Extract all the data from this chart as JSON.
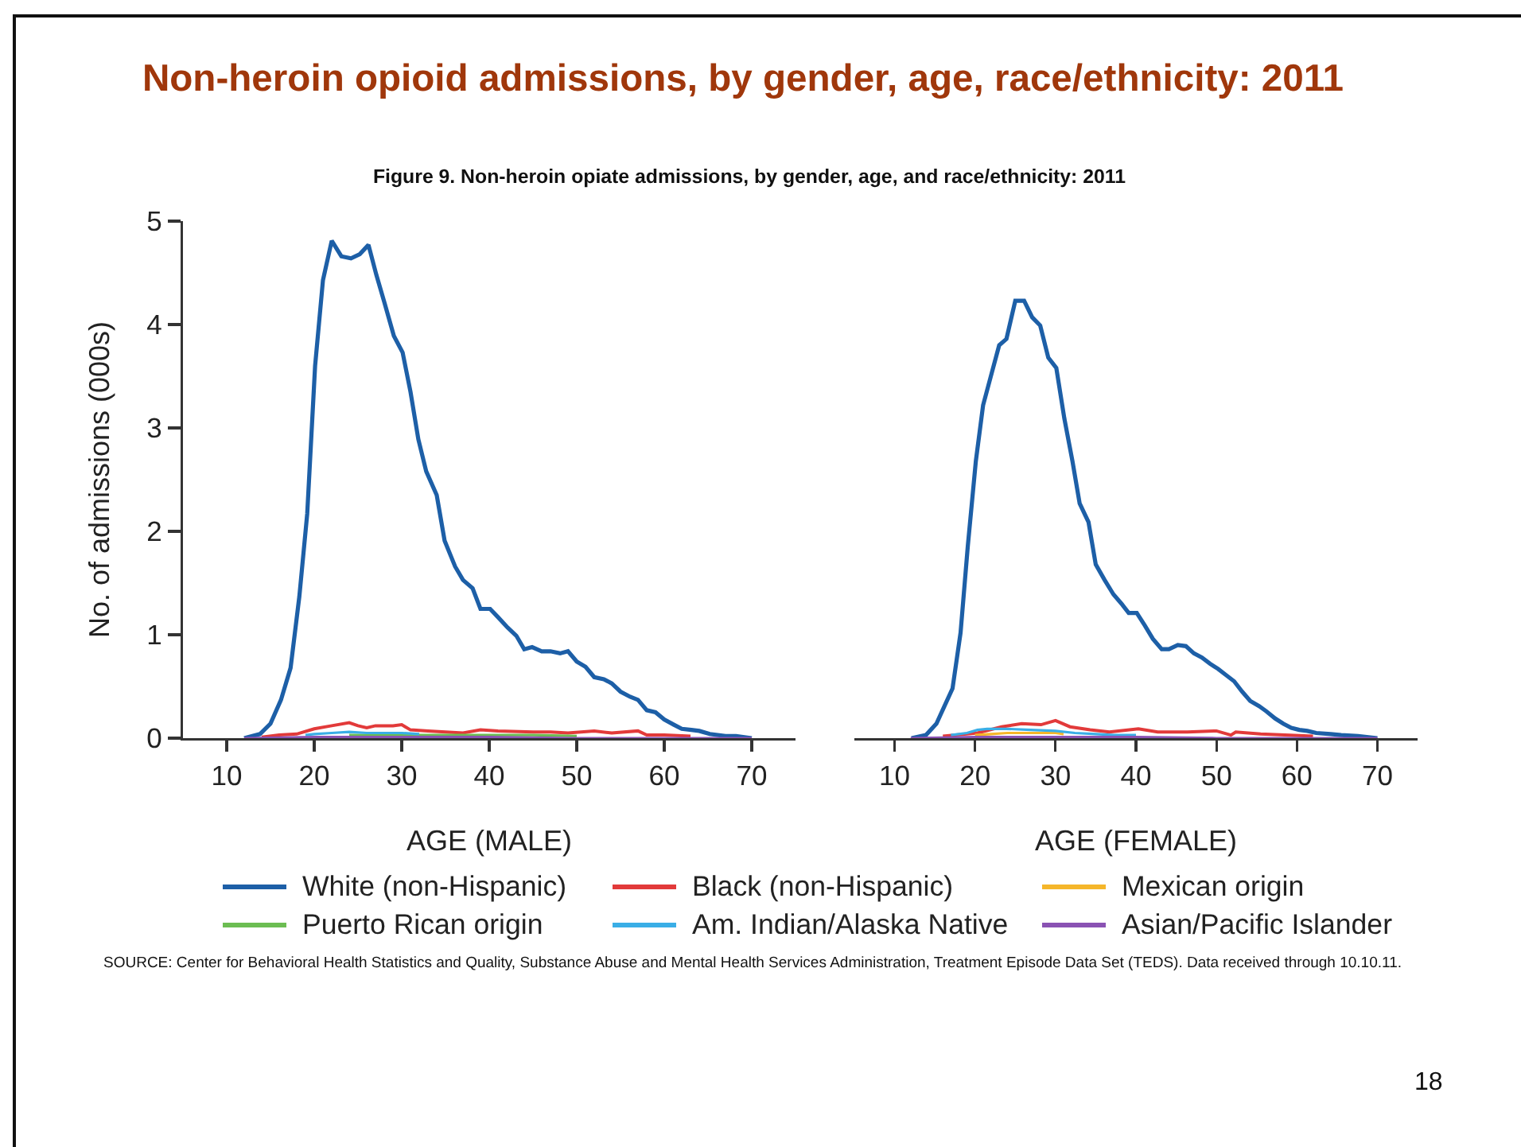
{
  "chart_data": [
    {
      "type": "line",
      "title": "Non-heroin opioid admissions, by gender, age, race/ethnicity: 2011",
      "subtitle": "Figure 9. Non-heroin opiate admissions, by gender, age, and race/ethnicity: 2011",
      "xlabel": "AGE (MALE)",
      "ylabel": "No. of admissions (000s)",
      "xlim": [
        5,
        75
      ],
      "xticks": [
        10,
        20,
        30,
        40,
        50,
        60,
        70
      ],
      "ylim": [
        0,
        5
      ],
      "yticks": [
        0,
        1,
        2,
        3,
        4,
        5
      ],
      "legend": "bottom",
      "annotations": [
        "SOURCE: Center for Behavioral Health Statistics and Quality, Substance Abuse and Mental Health Services Administration, Treatment Episode Data Set (TEDS). Data received through 10.10.11.",
        "18"
      ],
      "series": [
        {
          "name": "White (non-Hispanic)",
          "color": "#1d5fa7",
          "x": [
            12,
            13.8,
            15,
            16.2,
            17.3,
            18.3,
            19.2,
            20.1,
            21,
            22,
            23.1,
            24.2,
            25.2,
            26.2,
            27.1,
            28,
            29.1,
            30.1,
            31,
            31.9,
            32.8,
            34,
            34.9,
            36.1,
            37,
            38.1,
            39,
            40.1,
            41,
            42.1,
            43.1,
            44,
            44.9,
            46,
            47,
            48.1,
            49,
            50,
            51,
            52,
            53.1,
            54,
            55,
            56.1,
            57,
            58,
            59,
            60,
            61.1,
            62,
            63.1,
            64,
            65.2,
            67,
            68.2,
            70
          ],
          "values": [
            0,
            0.04,
            0.14,
            0.37,
            0.68,
            1.37,
            2.17,
            3.6,
            4.43,
            4.81,
            4.66,
            4.64,
            4.68,
            4.77,
            4.48,
            4.22,
            3.89,
            3.73,
            3.35,
            2.89,
            2.58,
            2.35,
            1.91,
            1.66,
            1.53,
            1.45,
            1.25,
            1.25,
            1.17,
            1.07,
            0.99,
            0.86,
            0.88,
            0.84,
            0.84,
            0.82,
            0.84,
            0.74,
            0.69,
            0.59,
            0.57,
            0.53,
            0.45,
            0.4,
            0.37,
            0.27,
            0.25,
            0.18,
            0.13,
            0.09,
            0.08,
            0.07,
            0.04,
            0.02,
            0.02,
            0
          ]
        },
        {
          "name": "Black (non-Hispanic)",
          "color": "#e23a3a",
          "x": [
            14,
            16,
            18,
            20,
            22,
            24,
            25,
            26,
            27,
            29,
            30,
            31,
            33,
            35,
            37,
            39,
            41,
            45,
            47,
            49,
            52,
            54,
            57,
            58,
            60,
            63
          ],
          "values": [
            0.01,
            0.03,
            0.04,
            0.09,
            0.12,
            0.15,
            0.12,
            0.1,
            0.12,
            0.12,
            0.13,
            0.08,
            0.07,
            0.06,
            0.05,
            0.08,
            0.07,
            0.06,
            0.06,
            0.05,
            0.07,
            0.05,
            0.07,
            0.03,
            0.03,
            0.02
          ]
        },
        {
          "name": "Mexican origin",
          "color": "#f5b62a"
        },
        {
          "name": "Puerto Rican origin",
          "color": "#6cbd52",
          "x": [
            24,
            28,
            32,
            36,
            40,
            45,
            50
          ],
          "values": [
            0.03,
            0.03,
            0.03,
            0.03,
            0.03,
            0.03,
            0.02
          ]
        },
        {
          "name": "Am. Indian/Alaska Native",
          "color": "#3aaee6",
          "x": [
            19,
            20,
            22,
            24,
            26,
            28,
            30,
            32
          ],
          "values": [
            0.03,
            0.04,
            0.05,
            0.06,
            0.05,
            0.05,
            0.05,
            0.04
          ]
        },
        {
          "name": "Asian/Pacific Islander",
          "color": "#8a52b3",
          "x": [
            12,
            20,
            30,
            40,
            50,
            70
          ],
          "values": [
            0,
            0.01,
            0.01,
            0.01,
            0,
            0
          ]
        }
      ]
    },
    {
      "type": "line",
      "xlabel": "AGE (FEMALE)",
      "xlim": [
        5,
        75
      ],
      "xticks": [
        10,
        20,
        30,
        40,
        50,
        60,
        70
      ],
      "ylim": [
        0,
        5
      ],
      "tick_labels": "x",
      "series": [
        {
          "color": "#1d5fa7",
          "x": [
            12.1,
            13.9,
            15.2,
            16.2,
            17.2,
            18.2,
            19.1,
            20.1,
            21,
            22,
            23,
            23.9,
            25,
            26.1,
            27.1,
            28.1,
            29.1,
            30.1,
            31.1,
            32.1,
            33,
            34.1,
            35,
            36.1,
            37.2,
            38.2,
            39.1,
            40.1,
            41.1,
            42.1,
            43.2,
            44.1,
            45.2,
            46.2,
            47.2,
            48.2,
            49.2,
            50.2,
            51.2,
            52.2,
            53.2,
            54.2,
            55.3,
            56.2,
            57.3,
            58.3,
            59.3,
            60.3,
            61.3,
            62.4,
            64.2,
            65.5,
            67.6,
            70
          ],
          "values": [
            0,
            0.03,
            0.14,
            0.31,
            0.48,
            1.02,
            1.86,
            2.68,
            3.22,
            3.51,
            3.8,
            3.86,
            4.23,
            4.23,
            4.07,
            3.99,
            3.68,
            3.58,
            3.09,
            2.68,
            2.27,
            2.09,
            1.68,
            1.53,
            1.39,
            1.3,
            1.21,
            1.21,
            1.09,
            0.96,
            0.86,
            0.86,
            0.9,
            0.89,
            0.82,
            0.78,
            0.72,
            0.67,
            0.61,
            0.55,
            0.45,
            0.36,
            0.31,
            0.26,
            0.19,
            0.14,
            0.1,
            0.08,
            0.07,
            0.05,
            0.04,
            0.03,
            0.02,
            0
          ]
        },
        {
          "color": "#e23a3a",
          "x": [
            16,
            20.3,
            23.3,
            25.8,
            28.2,
            30,
            31.8,
            34.3,
            36.7,
            40.3,
            42.7,
            46.4,
            50,
            51.8,
            52.4,
            55.5,
            58.5,
            62
          ],
          "values": [
            0.02,
            0.05,
            0.11,
            0.14,
            0.13,
            0.17,
            0.11,
            0.08,
            0.06,
            0.09,
            0.06,
            0.06,
            0.07,
            0.03,
            0.06,
            0.04,
            0.03,
            0.02
          ]
        },
        {
          "color": "#f5b62a",
          "x": [
            20,
            22,
            24,
            26,
            28,
            30,
            31
          ],
          "values": [
            0.03,
            0.04,
            0.05,
            0.05,
            0.05,
            0.05,
            0.04
          ]
        },
        {
          "color": "#3aaee6",
          "x": [
            17,
            19,
            20.3,
            21.5,
            23.9,
            26.9,
            30,
            32.4,
            35,
            37.3,
            40
          ],
          "values": [
            0.03,
            0.05,
            0.08,
            0.09,
            0.09,
            0.08,
            0.07,
            0.05,
            0.04,
            0.03,
            0.03
          ]
        },
        {
          "color": "#8a52b3",
          "x": [
            12,
            20,
            30,
            40,
            50,
            70
          ],
          "values": [
            0,
            0.01,
            0.01,
            0.01,
            0,
            0
          ]
        }
      ]
    }
  ]
}
